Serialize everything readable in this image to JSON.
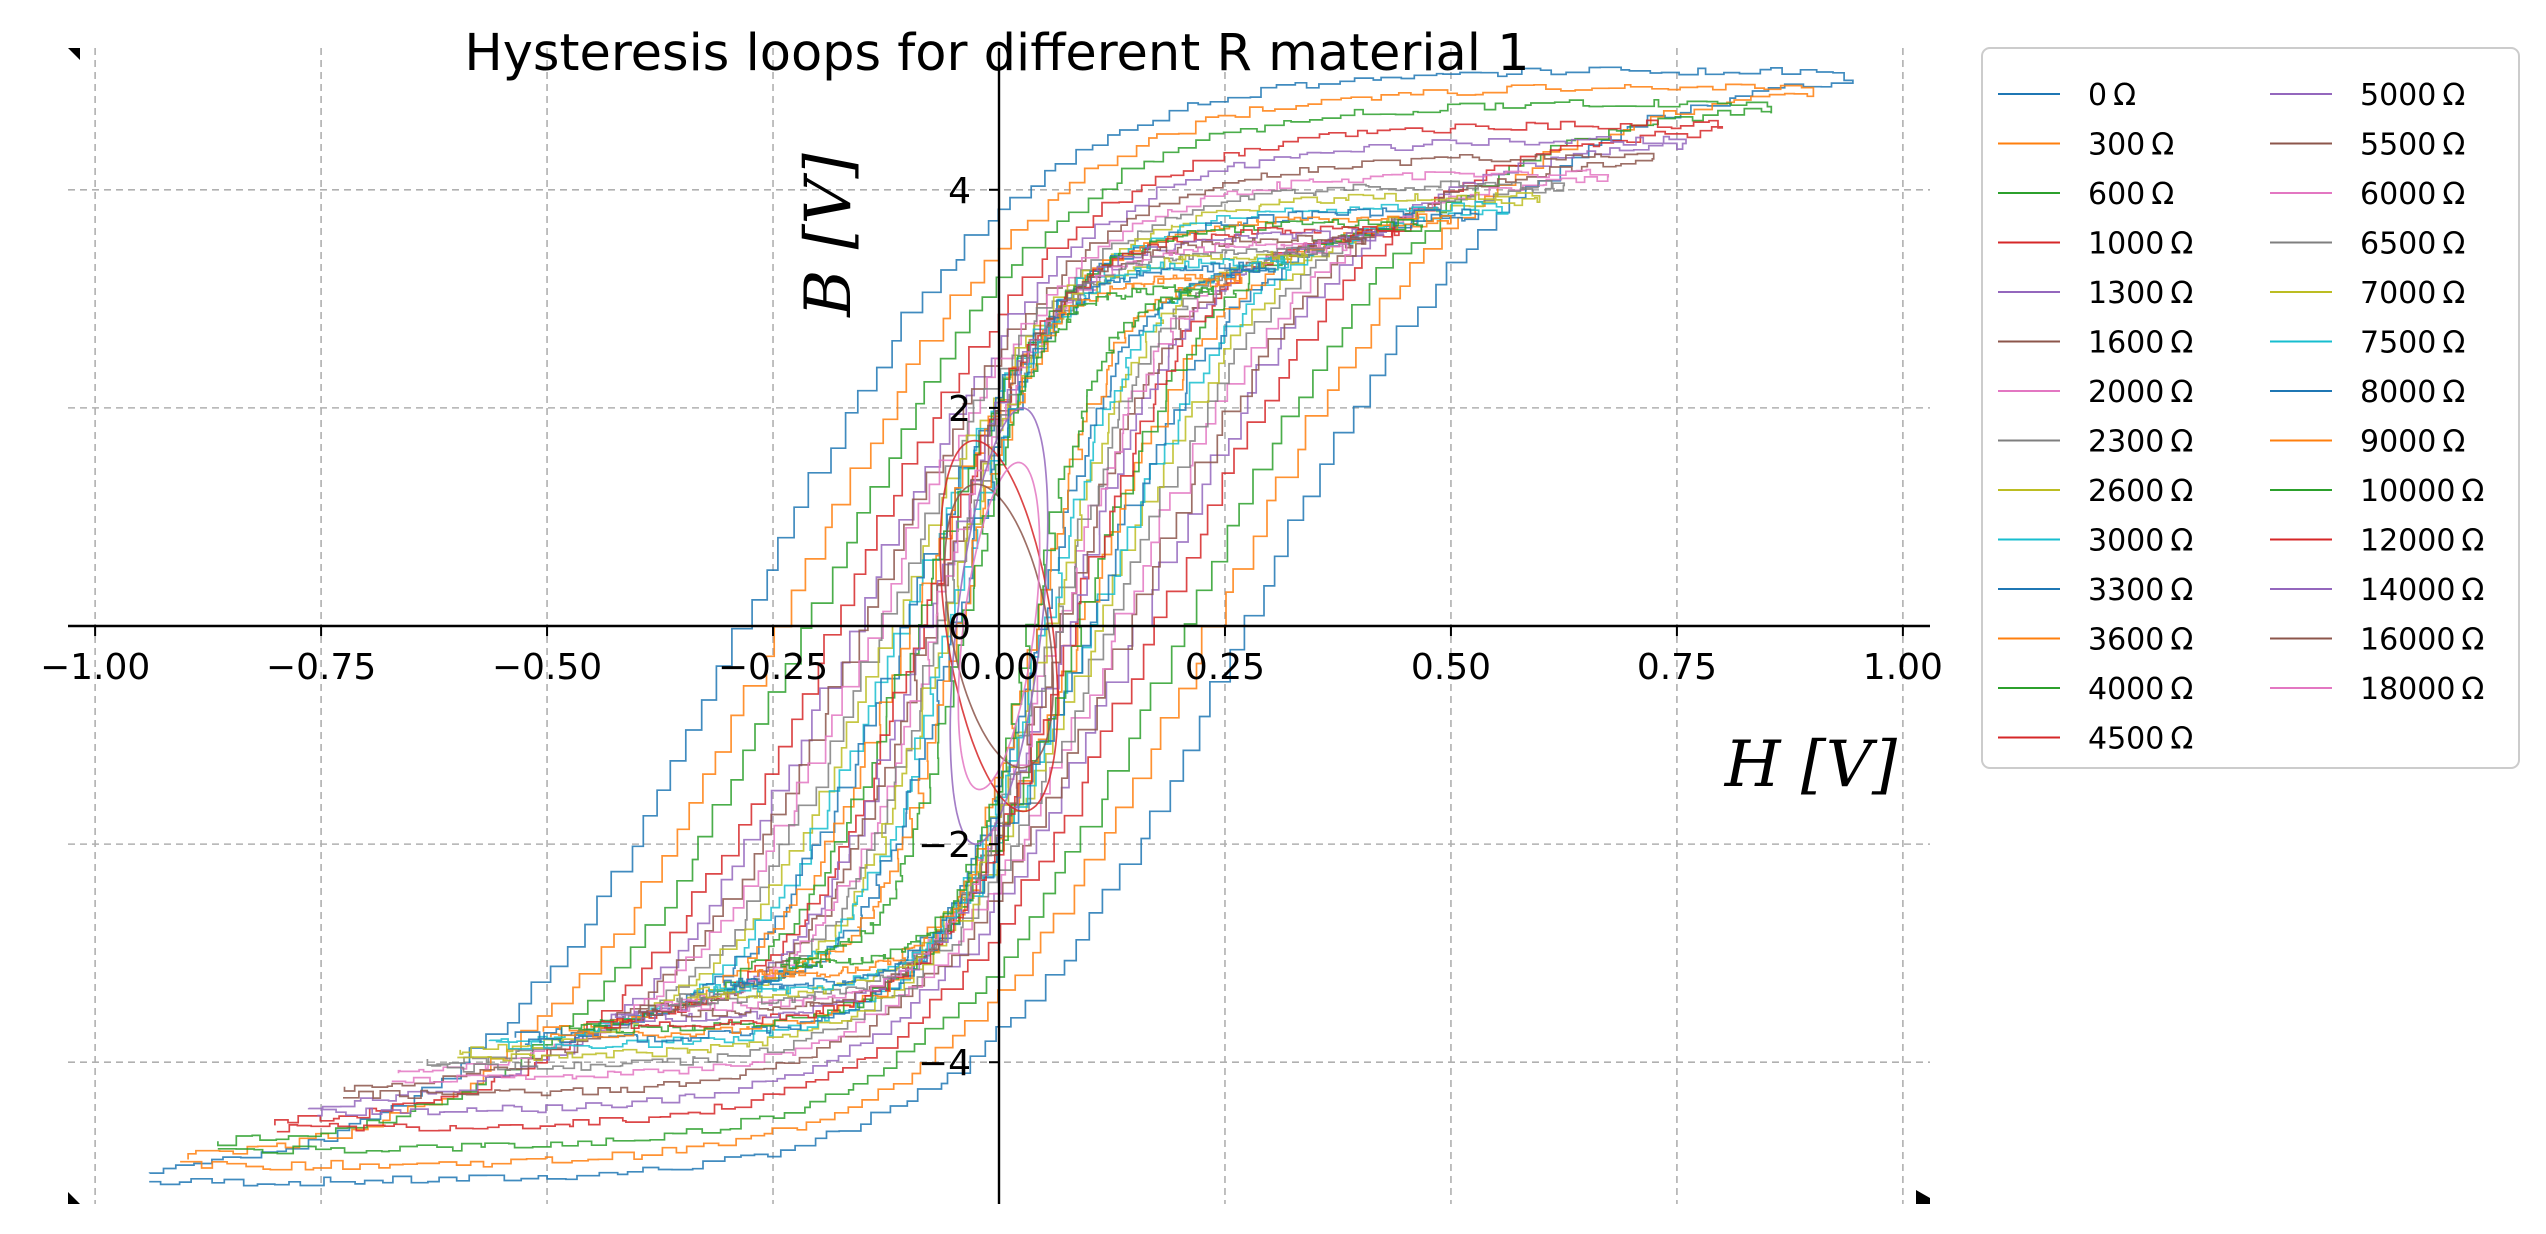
{
  "chart_data": {
    "type": "line",
    "title": "Hysteresis loops for different R material 1",
    "xlabel": "H [V]",
    "ylabel": "B [V]",
    "xlim": [
      -1.03,
      1.03
    ],
    "ylim": [
      -5.3,
      5.3
    ],
    "xticks": [
      -1.0,
      -0.75,
      -0.5,
      -0.25,
      0.0,
      0.25,
      0.5,
      0.75,
      1.0
    ],
    "xtick_labels": [
      "−1.00",
      "−0.75",
      "−0.50",
      "−0.25",
      "0.00",
      "0.25",
      "0.50",
      "0.75",
      "1.00"
    ],
    "yticks": [
      -4,
      -2,
      0,
      2,
      4
    ],
    "ytick_labels": [
      "−4",
      "−2",
      "0",
      "2",
      "4"
    ],
    "grid": true,
    "legend_position": "outside-right",
    "legend_columns": 2,
    "series": [
      {
        "name": "0 Ω",
        "color": "#1f77b4",
        "hmax": 0.94,
        "bmax": 5.1,
        "hc": 0.27,
        "br": 3.1,
        "step": true
      },
      {
        "name": "300 Ω",
        "color": "#ff7f0e",
        "hmax": 0.9,
        "bmax": 4.95,
        "hc": 0.23,
        "br": 3.0,
        "step": true
      },
      {
        "name": "600 Ω",
        "color": "#2ca02c",
        "hmax": 0.86,
        "bmax": 4.8,
        "hc": 0.2,
        "br": 2.9,
        "step": true
      },
      {
        "name": "1000 Ω",
        "color": "#d62728",
        "hmax": 0.8,
        "bmax": 4.6,
        "hc": 0.17,
        "br": 2.8,
        "step": true
      },
      {
        "name": "1300 Ω",
        "color": "#9467bd",
        "hmax": 0.76,
        "bmax": 4.45,
        "hc": 0.15,
        "br": 2.75,
        "step": true
      },
      {
        "name": "1600 Ω",
        "color": "#8c564b",
        "hmax": 0.72,
        "bmax": 4.3,
        "hc": 0.14,
        "br": 2.7,
        "step": true
      },
      {
        "name": "2000 Ω",
        "color": "#e377c2",
        "hmax": 0.67,
        "bmax": 4.15,
        "hc": 0.13,
        "br": 2.6,
        "step": true
      },
      {
        "name": "2300 Ω",
        "color": "#7f7f7f",
        "hmax": 0.63,
        "bmax": 4.05,
        "hc": 0.12,
        "br": 2.55,
        "step": true
      },
      {
        "name": "2600 Ω",
        "color": "#bcbd22",
        "hmax": 0.6,
        "bmax": 3.95,
        "hc": 0.11,
        "br": 2.5,
        "step": true
      },
      {
        "name": "3000 Ω",
        "color": "#17becf",
        "hmax": 0.56,
        "bmax": 3.85,
        "hc": 0.1,
        "br": 2.45,
        "step": true
      },
      {
        "name": "3300 Ω",
        "color": "#1f77b4",
        "hmax": 0.53,
        "bmax": 3.8,
        "hc": 0.095,
        "br": 2.4,
        "step": true
      },
      {
        "name": "3600 Ω",
        "color": "#ff7f0e",
        "hmax": 0.5,
        "bmax": 3.75,
        "hc": 0.09,
        "br": 2.35,
        "step": true
      },
      {
        "name": "4000 Ω",
        "color": "#2ca02c",
        "hmax": 0.47,
        "bmax": 3.7,
        "hc": 0.085,
        "br": 2.3,
        "step": true
      },
      {
        "name": "4500 Ω",
        "color": "#d62728",
        "hmax": 0.44,
        "bmax": 3.65,
        "hc": 0.08,
        "br": 2.25,
        "step": true
      },
      {
        "name": "5000 Ω",
        "color": "#9467bd",
        "hmax": 0.42,
        "bmax": 3.6,
        "hc": 0.075,
        "br": 2.2,
        "step": true
      },
      {
        "name": "5500 Ω",
        "color": "#8c564b",
        "hmax": 0.4,
        "bmax": 3.55,
        "hc": 0.07,
        "br": 2.15,
        "step": true
      },
      {
        "name": "6000 Ω",
        "color": "#e377c2",
        "hmax": 0.38,
        "bmax": 3.5,
        "hc": 0.065,
        "br": 2.1,
        "step": true
      },
      {
        "name": "6500 Ω",
        "color": "#7f7f7f",
        "hmax": 0.36,
        "bmax": 3.45,
        "hc": 0.06,
        "br": 2.05,
        "step": true
      },
      {
        "name": "7000 Ω",
        "color": "#bcbd22",
        "hmax": 0.34,
        "bmax": 3.4,
        "hc": 0.055,
        "br": 2.0,
        "step": true
      },
      {
        "name": "7500 Ω",
        "color": "#17becf",
        "hmax": 0.32,
        "bmax": 3.35,
        "hc": 0.05,
        "br": 1.95,
        "step": true
      },
      {
        "name": "8000 Ω",
        "color": "#1f77b4",
        "hmax": 0.3,
        "bmax": 3.3,
        "hc": 0.045,
        "br": 1.9,
        "step": true
      },
      {
        "name": "9000 Ω",
        "color": "#ff7f0e",
        "hmax": 0.27,
        "bmax": 3.2,
        "hc": 0.04,
        "br": 1.8,
        "step": true
      },
      {
        "name": "10000 Ω",
        "color": "#2ca02c",
        "hmax": 0.24,
        "bmax": 3.1,
        "hc": 0.035,
        "br": 1.7,
        "step": true
      },
      {
        "name": "12000 Ω",
        "color": "#d62728",
        "hmax": 0.065,
        "bmax": 1.7,
        "shape": "lens"
      },
      {
        "name": "14000 Ω",
        "color": "#9467bd",
        "hmax": 0.06,
        "bmax": 2.0,
        "shape": "ellipse"
      },
      {
        "name": "16000 Ω",
        "color": "#8c564b",
        "hmax": 0.06,
        "bmax": 1.3,
        "shape": "lens"
      },
      {
        "name": "18000 Ω",
        "color": "#e377c2",
        "hmax": 0.05,
        "bmax": 1.5,
        "shape": "ellipse"
      }
    ]
  }
}
